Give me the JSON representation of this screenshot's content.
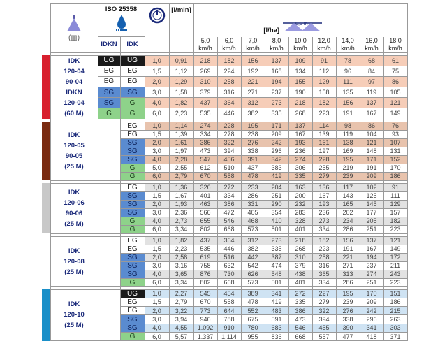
{
  "header": {
    "iso": "ISO 25358",
    "flow_unit": "[l/min]",
    "rate_unit": "[l/ha]",
    "spacing": "0,5 m",
    "col_idkn": "IDKN",
    "col_idk": "IDK",
    "speeds": [
      "5,0",
      "6,0",
      "7,0",
      "8,0",
      "10,0",
      "12,0",
      "14,0",
      "16,0",
      "18,0"
    ],
    "speed_unit": "km/h",
    "icons": [
      "nozzle-spray-icon",
      "droplet-icon",
      "pressure-gauge-icon",
      "boom-spray-icon"
    ]
  },
  "class_colors": {
    "UG": "#1a1a1a",
    "EG": "#ffffff",
    "SG": "#5a8bd0",
    "G": "#8ed28a"
  },
  "blocks": [
    {
      "name": [
        "IDK",
        "120-04",
        "90-04",
        "IDKN",
        "120-04",
        "(60 M)"
      ],
      "color": "#d8202e",
      "stripe": "#f6cdb8",
      "has_idkn": true,
      "rows": [
        [
          "UG",
          "UG",
          "1,0",
          "0,91",
          "218",
          "182",
          "156",
          "137",
          "109",
          "91",
          "78",
          "68",
          "61"
        ],
        [
          "EG",
          "EG",
          "1,5",
          "1,12",
          "269",
          "224",
          "192",
          "168",
          "134",
          "112",
          "96",
          "84",
          "75"
        ],
        [
          "EG",
          "EG",
          "2,0",
          "1,29",
          "310",
          "258",
          "221",
          "194",
          "155",
          "129",
          "111",
          "97",
          "86"
        ],
        [
          "SG",
          "SG",
          "3,0",
          "1,58",
          "379",
          "316",
          "271",
          "237",
          "190",
          "158",
          "135",
          "119",
          "105"
        ],
        [
          "SG",
          "G",
          "4,0",
          "1,82",
          "437",
          "364",
          "312",
          "273",
          "218",
          "182",
          "156",
          "137",
          "121"
        ],
        [
          "G",
          "G",
          "6,0",
          "2,23",
          "535",
          "446",
          "382",
          "335",
          "268",
          "223",
          "191",
          "167",
          "149"
        ]
      ]
    },
    {
      "name": [
        "IDK",
        "120-05",
        "90-05",
        "(25 M)"
      ],
      "color": "#7a2a10",
      "stripe": "#e8c3ad",
      "has_idkn": false,
      "rows": [
        [
          "",
          "EG",
          "1,0",
          "1,14",
          "274",
          "228",
          "195",
          "171",
          "137",
          "114",
          "98",
          "86",
          "76"
        ],
        [
          "",
          "EG",
          "1,5",
          "1,39",
          "334",
          "278",
          "238",
          "209",
          "167",
          "139",
          "119",
          "104",
          "93"
        ],
        [
          "",
          "SG",
          "2,0",
          "1,61",
          "386",
          "322",
          "276",
          "242",
          "193",
          "161",
          "138",
          "121",
          "107"
        ],
        [
          "",
          "SG",
          "3,0",
          "1,97",
          "473",
          "394",
          "338",
          "296",
          "236",
          "197",
          "169",
          "148",
          "131"
        ],
        [
          "",
          "SG",
          "4,0",
          "2,28",
          "547",
          "456",
          "391",
          "342",
          "274",
          "228",
          "195",
          "171",
          "152"
        ],
        [
          "",
          "G",
          "5,0",
          "2,55",
          "612",
          "510",
          "437",
          "383",
          "306",
          "255",
          "219",
          "191",
          "170"
        ],
        [
          "",
          "G",
          "6,0",
          "2,79",
          "670",
          "558",
          "478",
          "419",
          "335",
          "279",
          "239",
          "209",
          "186"
        ]
      ]
    },
    {
      "name": [
        "IDK",
        "120-06",
        "90-06",
        "(25 M)"
      ],
      "color": "#c8c8c8",
      "stripe": "#e2e2e2",
      "has_idkn": false,
      "rows": [
        [
          "",
          "EG",
          "1,0",
          "1,36",
          "326",
          "272",
          "233",
          "204",
          "163",
          "136",
          "117",
          "102",
          "91"
        ],
        [
          "",
          "SG",
          "1,5",
          "1,67",
          "401",
          "334",
          "286",
          "251",
          "200",
          "167",
          "143",
          "125",
          "111"
        ],
        [
          "",
          "SG",
          "2,0",
          "1,93",
          "463",
          "386",
          "331",
          "290",
          "232",
          "193",
          "165",
          "145",
          "129"
        ],
        [
          "",
          "SG",
          "3,0",
          "2,36",
          "566",
          "472",
          "405",
          "354",
          "283",
          "236",
          "202",
          "177",
          "157"
        ],
        [
          "",
          "G",
          "4,0",
          "2,73",
          "655",
          "546",
          "468",
          "410",
          "328",
          "273",
          "234",
          "205",
          "182"
        ],
        [
          "",
          "G",
          "6,0",
          "3,34",
          "802",
          "668",
          "573",
          "501",
          "401",
          "334",
          "286",
          "251",
          "223"
        ]
      ]
    },
    {
      "name": [
        "IDK",
        "120-08",
        "(25 M)"
      ],
      "color": "#ffffff",
      "stripe": "#e2e2e2",
      "has_idkn": false,
      "rows": [
        [
          "",
          "EG",
          "1,0",
          "1,82",
          "437",
          "364",
          "312",
          "273",
          "218",
          "182",
          "156",
          "137",
          "121"
        ],
        [
          "",
          "EG",
          "1,5",
          "2,23",
          "535",
          "446",
          "382",
          "335",
          "268",
          "223",
          "191",
          "167",
          "149"
        ],
        [
          "",
          "SG",
          "2,0",
          "2,58",
          "619",
          "516",
          "442",
          "387",
          "310",
          "258",
          "221",
          "194",
          "172"
        ],
        [
          "",
          "SG",
          "3,0",
          "3,16",
          "758",
          "632",
          "542",
          "474",
          "379",
          "316",
          "271",
          "237",
          "211"
        ],
        [
          "",
          "SG",
          "4,0",
          "3,65",
          "876",
          "730",
          "626",
          "548",
          "438",
          "365",
          "313",
          "274",
          "243"
        ],
        [
          "",
          "G",
          "6,0",
          "3,34",
          "802",
          "668",
          "573",
          "501",
          "401",
          "334",
          "286",
          "251",
          "223"
        ]
      ]
    },
    {
      "name": [
        "IDK",
        "120-10",
        "(25 M)"
      ],
      "color": "#1a8fc8",
      "stripe": "#cfe3f3",
      "has_idkn": false,
      "rows": [
        [
          "",
          "UG",
          "1,0",
          "2,27",
          "545",
          "454",
          "389",
          "341",
          "272",
          "227",
          "195",
          "170",
          "151"
        ],
        [
          "",
          "EG",
          "1,5",
          "2,79",
          "670",
          "558",
          "478",
          "419",
          "335",
          "279",
          "239",
          "209",
          "186"
        ],
        [
          "",
          "EG",
          "2,0",
          "3,22",
          "773",
          "644",
          "552",
          "483",
          "386",
          "322",
          "276",
          "242",
          "215"
        ],
        [
          "",
          "SG",
          "3,0",
          "3,94",
          "946",
          "788",
          "675",
          "591",
          "473",
          "394",
          "338",
          "296",
          "263"
        ],
        [
          "",
          "SG",
          "4,0",
          "4,55",
          "1.092",
          "910",
          "780",
          "683",
          "546",
          "455",
          "390",
          "341",
          "303"
        ],
        [
          "",
          "G",
          "6,0",
          "5,57",
          "1.337",
          "1.114",
          "955",
          "836",
          "668",
          "557",
          "477",
          "418",
          "371"
        ]
      ]
    }
  ]
}
